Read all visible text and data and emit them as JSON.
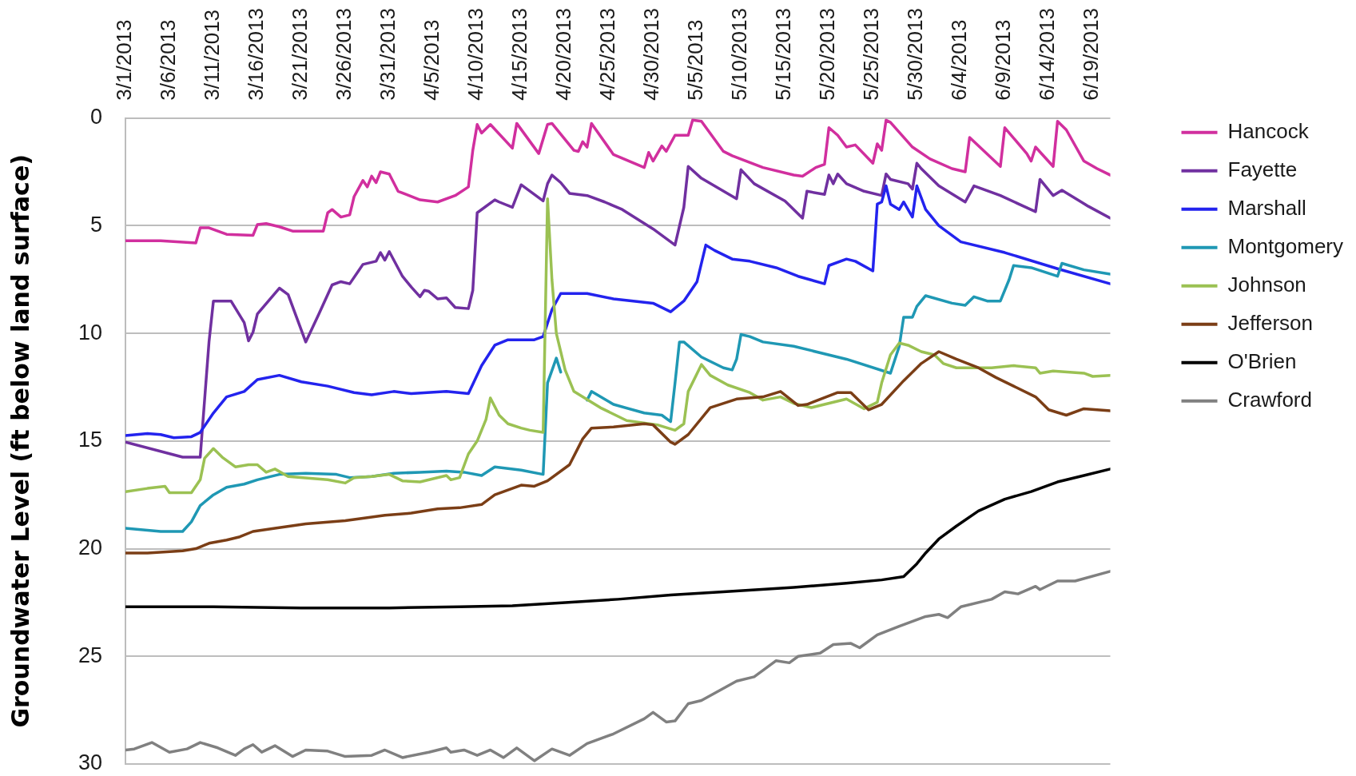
{
  "chart_data": {
    "type": "line",
    "ylabel": "Groundwater Level (ft below land surface)",
    "xlim": [
      "2013-03-01",
      "2013-06-21"
    ],
    "xticks": [
      {
        "value": "2013-03-01",
        "label": "3/1/2013"
      },
      {
        "value": "2013-03-06",
        "label": "3/6/2013"
      },
      {
        "value": "2013-03-11",
        "label": "3/11/2013"
      },
      {
        "value": "2013-03-16",
        "label": "3/16/2013"
      },
      {
        "value": "2013-03-21",
        "label": "3/21/2013"
      },
      {
        "value": "2013-03-26",
        "label": "3/26/2013"
      },
      {
        "value": "2013-03-31",
        "label": "3/31/2013"
      },
      {
        "value": "2013-04-05",
        "label": "4/5/2013"
      },
      {
        "value": "2013-04-10",
        "label": "4/10/2013"
      },
      {
        "value": "2013-04-15",
        "label": "4/15/2013"
      },
      {
        "value": "2013-04-20",
        "label": "4/20/2013"
      },
      {
        "value": "2013-04-25",
        "label": "4/25/2013"
      },
      {
        "value": "2013-04-30",
        "label": "4/30/2013"
      },
      {
        "value": "2013-05-05",
        "label": "5/5/2013"
      },
      {
        "value": "2013-05-10",
        "label": "5/10/2013"
      },
      {
        "value": "2013-05-15",
        "label": "5/15/2013"
      },
      {
        "value": "2013-05-20",
        "label": "5/20/2013"
      },
      {
        "value": "2013-05-25",
        "label": "5/25/2013"
      },
      {
        "value": "2013-05-30",
        "label": "5/30/2013"
      },
      {
        "value": "2013-06-04",
        "label": "6/4/2013"
      },
      {
        "value": "2013-06-09",
        "label": "6/9/2013"
      },
      {
        "value": "2013-06-14",
        "label": "6/14/2013"
      },
      {
        "value": "2013-06-19",
        "label": "6/19/2013"
      }
    ],
    "ylim": [
      30,
      0
    ],
    "yticks": [
      0,
      5,
      10,
      15,
      20,
      25,
      30
    ],
    "grid": "y",
    "legend": "top right",
    "marker": "none",
    "series": [
      {
        "name": "Hancock",
        "color": "#d12f9e",
        "x": [
          "2013-03-01",
          "2013-03-05",
          "2013-03-09",
          "2013-03-09T12:00",
          "2013-03-10T12:00",
          "2013-03-12T12:00",
          "2013-03-15T12:00",
          "2013-03-16",
          "2013-03-17",
          "2013-03-18T12:00",
          "2013-03-20",
          "2013-03-23T12:00",
          "2013-03-24",
          "2013-03-24T12:00",
          "2013-03-25T12:00",
          "2013-03-26T12:00",
          "2013-03-27",
          "2013-03-28",
          "2013-03-28T12:00",
          "2013-03-29",
          "2013-03-29T12:00",
          "2013-03-30",
          "2013-03-31",
          "2013-04-01",
          "2013-04-03T12:00",
          "2013-04-05T12:00",
          "2013-04-07T12:00",
          "2013-04-09",
          "2013-04-09T12:00",
          "2013-04-10",
          "2013-04-10T12:00",
          "2013-04-11T12:00",
          "2013-04-14",
          "2013-04-14T12:00",
          "2013-04-17",
          "2013-04-18",
          "2013-04-18T12:00",
          "2013-04-21",
          "2013-04-21T12:00",
          "2013-04-22",
          "2013-04-22T12:00",
          "2013-04-23",
          "2013-04-25T12:00",
          "2013-04-29",
          "2013-04-29T12:00",
          "2013-04-30",
          "2013-05-01",
          "2013-05-01T12:00",
          "2013-05-02T12:00",
          "2013-05-04",
          "2013-05-04T12:00",
          "2013-05-05T12:00",
          "2013-05-08",
          "2013-05-09",
          "2013-05-12T12:00",
          "2013-05-16",
          "2013-05-17",
          "2013-05-18T12:00",
          "2013-05-19T12:00",
          "2013-05-20",
          "2013-05-21",
          "2013-05-22",
          "2013-05-23",
          "2013-05-25",
          "2013-05-25T12:00",
          "2013-05-26",
          "2013-05-26T12:00",
          "2013-05-27",
          "2013-05-29T12:00",
          "2013-05-31T12:00",
          "2013-06-03",
          "2013-06-04T12:00",
          "2013-06-05",
          "2013-06-08T12:00",
          "2013-06-09",
          "2013-06-11T12:00",
          "2013-06-12",
          "2013-06-12T12:00",
          "2013-06-14T12:00",
          "2013-06-15",
          "2013-06-16",
          "2013-06-18",
          "2013-06-19T12:00",
          "2013-06-21"
        ],
        "values": [
          5.7,
          5.7,
          5.8,
          5.1,
          5.1,
          5.4,
          5.45,
          4.95,
          4.9,
          5.05,
          5.25,
          5.25,
          4.4,
          4.25,
          4.6,
          4.5,
          3.65,
          2.9,
          3.2,
          2.7,
          3.0,
          2.5,
          2.6,
          3.4,
          3.8,
          3.9,
          3.6,
          3.2,
          1.5,
          0.3,
          0.7,
          0.3,
          1.4,
          0.25,
          1.65,
          0.3,
          0.25,
          1.5,
          1.55,
          1.1,
          1.35,
          0.25,
          1.7,
          2.3,
          1.6,
          2.0,
          1.3,
          1.55,
          0.8,
          0.8,
          0.1,
          0.15,
          1.55,
          1.75,
          2.3,
          2.65,
          2.7,
          2.3,
          2.15,
          0.45,
          0.8,
          1.35,
          1.25,
          2.1,
          1.2,
          1.5,
          0.1,
          0.2,
          1.35,
          1.9,
          2.35,
          2.5,
          0.9,
          2.25,
          0.45,
          1.65,
          2.0,
          1.35,
          2.25,
          0.15,
          0.55,
          2.0,
          2.35,
          2.65
        ]
      },
      {
        "name": "Fayette",
        "color": "#7030a0",
        "x": [
          "2013-03-01",
          "2013-03-07T12:00",
          "2013-03-09T12:00",
          "2013-03-10T12:00",
          "2013-03-11",
          "2013-03-13",
          "2013-03-14T12:00",
          "2013-03-15",
          "2013-03-15T12:00",
          "2013-03-16",
          "2013-03-18T12:00",
          "2013-03-19T12:00",
          "2013-03-21T12:00",
          "2013-03-23",
          "2013-03-24T12:00",
          "2013-03-25T12:00",
          "2013-03-26T12:00",
          "2013-03-27T12:00",
          "2013-03-28",
          "2013-03-29T12:00",
          "2013-03-30",
          "2013-03-30T12:00",
          "2013-03-31",
          "2013-04-01T12:00",
          "2013-04-02T12:00",
          "2013-04-03T12:00",
          "2013-04-04",
          "2013-04-04T12:00",
          "2013-04-05T12:00",
          "2013-04-06T12:00",
          "2013-04-07T12:00",
          "2013-04-09",
          "2013-04-09T12:00",
          "2013-04-10",
          "2013-04-12",
          "2013-04-12T12:00",
          "2013-04-14",
          "2013-04-15",
          "2013-04-17T12:00",
          "2013-04-18",
          "2013-04-18T12:00",
          "2013-04-19T12:00",
          "2013-04-20T12:00",
          "2013-04-22T12:00",
          "2013-04-24T12:00",
          "2013-04-26T12:00",
          "2013-04-30",
          "2013-05-02T12:00",
          "2013-05-03T12:00",
          "2013-05-04",
          "2013-05-05T12:00",
          "2013-05-09T12:00",
          "2013-05-10",
          "2013-05-11T12:00",
          "2013-05-15",
          "2013-05-17",
          "2013-05-17T12:00",
          "2013-05-19T12:00",
          "2013-05-20",
          "2013-05-20T12:00",
          "2013-05-21",
          "2013-05-22",
          "2013-05-24",
          "2013-05-26",
          "2013-05-26T12:00",
          "2013-05-27",
          "2013-05-29",
          "2013-05-29T12:00",
          "2013-05-30",
          "2013-05-30T12:00",
          "2013-06-01T12:00",
          "2013-06-04T12:00",
          "2013-06-05T12:00",
          "2013-06-08T12:00",
          "2013-06-12T12:00",
          "2013-06-13",
          "2013-06-14T12:00",
          "2013-06-15T12:00",
          "2013-06-18T12:00",
          "2013-06-21"
        ],
        "values": [
          15.05,
          15.75,
          15.75,
          10.4,
          8.5,
          8.5,
          9.5,
          10.35,
          9.95,
          9.1,
          7.9,
          8.2,
          10.4,
          9.1,
          7.75,
          7.6,
          7.7,
          7.1,
          6.8,
          6.65,
          6.25,
          6.6,
          6.2,
          7.35,
          7.85,
          8.3,
          8.0,
          8.05,
          8.4,
          8.35,
          8.8,
          8.85,
          8.0,
          4.4,
          3.8,
          3.9,
          4.15,
          3.1,
          3.85,
          3.05,
          2.65,
          3.0,
          3.5,
          3.6,
          3.9,
          4.25,
          5.15,
          5.9,
          4.15,
          2.25,
          2.8,
          3.75,
          2.4,
          3.05,
          3.85,
          4.65,
          3.4,
          3.55,
          2.65,
          3.05,
          2.6,
          3.05,
          3.4,
          3.6,
          2.6,
          2.85,
          3.05,
          3.3,
          2.1,
          2.35,
          3.15,
          3.9,
          3.15,
          3.6,
          4.35,
          2.85,
          3.6,
          3.35,
          4.1,
          4.65
        ]
      },
      {
        "name": "Marshall",
        "color": "#2323ee",
        "x": [
          "2013-03-01",
          "2013-03-03T12:00",
          "2013-03-05",
          "2013-03-06T12:00",
          "2013-03-08T12:00",
          "2013-03-09T12:00",
          "2013-03-11",
          "2013-03-12T12:00",
          "2013-03-14T12:00",
          "2013-03-16",
          "2013-03-18T12:00",
          "2013-03-21",
          "2013-03-24",
          "2013-03-27",
          "2013-03-29",
          "2013-03-31T12:00",
          "2013-04-02T12:00",
          "2013-04-06T12:00",
          "2013-04-09",
          "2013-04-10T12:00",
          "2013-04-12",
          "2013-04-13T12:00",
          "2013-04-16T12:00",
          "2013-04-17T12:00",
          "2013-04-18T12:00",
          "2013-04-19T12:00",
          "2013-04-22T12:00",
          "2013-04-25T12:00",
          "2013-04-30",
          "2013-05-02",
          "2013-05-03T12:00",
          "2013-05-05",
          "2013-05-06",
          "2013-05-07",
          "2013-05-09",
          "2013-05-11",
          "2013-05-14",
          "2013-05-16T12:00",
          "2013-05-19T12:00",
          "2013-05-20",
          "2013-05-22",
          "2013-05-23",
          "2013-05-25",
          "2013-05-25T12:00",
          "2013-05-26",
          "2013-05-26T12:00",
          "2013-05-27",
          "2013-05-28",
          "2013-05-28T12:00",
          "2013-05-29T12:00",
          "2013-05-30",
          "2013-05-31",
          "2013-06-01T12:00",
          "2013-06-04",
          "2013-06-09",
          "2013-06-15",
          "2013-06-21"
        ],
        "values": [
          14.75,
          14.65,
          14.7,
          14.85,
          14.8,
          14.6,
          13.7,
          12.95,
          12.7,
          12.15,
          11.95,
          12.25,
          12.45,
          12.75,
          12.85,
          12.7,
          12.8,
          12.7,
          12.8,
          11.5,
          10.55,
          10.3,
          10.3,
          10.15,
          8.9,
          8.15,
          8.15,
          8.4,
          8.6,
          9.0,
          8.5,
          7.6,
          5.9,
          6.15,
          6.55,
          6.65,
          6.95,
          7.35,
          7.7,
          6.85,
          6.55,
          6.65,
          7.1,
          4.0,
          3.9,
          3.15,
          4.0,
          4.25,
          3.9,
          4.6,
          3.15,
          4.25,
          5.0,
          5.75,
          6.25,
          7.0,
          7.7
        ]
      },
      {
        "name": "Montgomery",
        "color": "#1f98b4",
        "x": [
          "2013-03-01",
          "2013-03-05",
          "2013-03-07T12:00",
          "2013-03-08T12:00",
          "2013-03-09T12:00",
          "2013-03-11",
          "2013-03-12T12:00",
          "2013-03-14T12:00",
          "2013-03-16",
          "2013-03-18T12:00",
          "2013-03-21T12:00",
          "2013-03-25",
          "2013-03-26T12:00",
          "2013-03-29",
          "2013-03-31T12:00",
          "2013-04-03T12:00",
          "2013-04-06T12:00",
          "2013-04-08T12:00",
          "2013-04-10T12:00",
          "2013-04-12",
          "2013-04-15",
          "2013-04-17T12:00",
          "2013-04-18",
          "2013-04-19",
          "2013-04-19T12:00",
          "2013-04-20T12:00",
          "2013-04-22T12:00",
          "2013-04-23",
          "2013-04-25T12:00",
          "2013-04-29",
          "2013-05-01",
          "2013-05-02",
          "2013-05-02T12:00",
          "2013-05-03",
          "2013-05-03T12:00",
          "2013-05-05T12:00",
          "2013-05-08",
          "2013-05-09",
          "2013-05-09T12:00",
          "2013-05-10",
          "2013-05-11",
          "2013-05-12T12:00",
          "2013-05-16",
          "2013-05-22",
          "2013-05-27",
          "2013-05-28",
          "2013-05-28T12:00",
          "2013-05-29T12:00",
          "2013-05-30",
          "2013-05-31",
          "2013-06-03",
          "2013-06-04T12:00",
          "2013-06-05T12:00",
          "2013-06-07",
          "2013-06-08T12:00",
          "2013-06-09T12:00",
          "2013-06-10",
          "2013-06-12",
          "2013-06-15",
          "2013-06-15T12:00",
          "2013-06-18",
          "2013-06-21"
        ],
        "values": [
          19.05,
          19.2,
          19.2,
          18.75,
          18.0,
          17.5,
          17.15,
          17.0,
          16.8,
          16.55,
          16.5,
          16.55,
          16.7,
          16.65,
          16.5,
          16.45,
          16.4,
          16.45,
          16.6,
          16.2,
          16.35,
          16.55,
          12.3,
          11.15,
          11.8,
          null,
          13.1,
          12.7,
          13.3,
          13.7,
          13.8,
          14.1,
          12.3,
          10.4,
          10.4,
          11.1,
          11.6,
          11.7,
          11.2,
          10.05,
          10.15,
          10.4,
          10.6,
          11.2,
          11.85,
          10.6,
          9.25,
          9.25,
          8.75,
          8.25,
          8.6,
          8.7,
          8.3,
          8.5,
          8.5,
          7.5,
          6.85,
          6.95,
          7.35,
          6.75,
          7.05,
          7.25
        ]
      },
      {
        "name": "Johnson",
        "color": "#9bc153",
        "x": [
          "2013-03-01",
          "2013-03-03T12:00",
          "2013-03-05T12:00",
          "2013-03-06",
          "2013-03-08T12:00",
          "2013-03-09T12:00",
          "2013-03-10",
          "2013-03-11",
          "2013-03-12",
          "2013-03-13T12:00",
          "2013-03-15",
          "2013-03-16",
          "2013-03-17",
          "2013-03-18",
          "2013-03-19T12:00",
          "2013-03-24",
          "2013-03-26",
          "2013-03-27",
          "2013-03-29",
          "2013-03-31",
          "2013-04-01T12:00",
          "2013-04-03T12:00",
          "2013-04-05",
          "2013-04-06T12:00",
          "2013-04-07",
          "2013-04-08",
          "2013-04-09",
          "2013-04-10",
          "2013-04-11",
          "2013-04-11T12:00",
          "2013-04-12T12:00",
          "2013-04-13T12:00",
          "2013-04-15",
          "2013-04-16",
          "2013-04-17T12:00",
          "2013-04-18",
          "2013-04-18T12:00",
          "2013-04-19",
          "2013-04-20",
          "2013-04-21",
          "2013-04-24",
          "2013-04-27",
          "2013-04-30T12:00",
          "2013-05-02T12:00",
          "2013-05-03T12:00",
          "2013-05-04",
          "2013-05-05T12:00",
          "2013-05-06T12:00",
          "2013-05-08T12:00",
          "2013-05-11",
          "2013-05-12T12:00",
          "2013-05-14T12:00",
          "2013-05-16",
          "2013-05-18",
          "2013-05-22",
          "2013-05-24",
          "2013-05-25T12:00",
          "2013-05-26",
          "2013-05-27",
          "2013-05-28",
          "2013-05-29",
          "2013-05-30T12:00",
          "2013-06-01",
          "2013-06-02",
          "2013-06-03T12:00",
          "2013-06-07T12:00",
          "2013-06-10",
          "2013-06-12T12:00",
          "2013-06-13",
          "2013-06-14T12:00",
          "2013-06-18",
          "2013-06-19",
          "2013-06-21"
        ],
        "values": [
          17.35,
          17.2,
          17.1,
          17.4,
          17.4,
          16.8,
          15.8,
          15.35,
          15.75,
          16.2,
          16.1,
          16.1,
          16.45,
          16.3,
          16.65,
          16.8,
          16.95,
          16.7,
          16.65,
          16.55,
          16.85,
          16.9,
          16.75,
          16.6,
          16.8,
          16.7,
          15.6,
          15.0,
          14.0,
          13.0,
          13.8,
          14.2,
          14.4,
          14.5,
          14.6,
          3.75,
          7.5,
          10.0,
          11.7,
          12.7,
          13.45,
          14.05,
          14.25,
          14.5,
          14.2,
          12.7,
          11.45,
          11.95,
          12.4,
          12.75,
          13.1,
          12.95,
          13.25,
          13.45,
          13.05,
          13.5,
          13.2,
          12.3,
          11.0,
          10.45,
          10.55,
          10.85,
          11.0,
          11.4,
          11.6,
          11.6,
          11.5,
          11.6,
          11.85,
          11.75,
          11.85,
          12.0,
          11.95
        ]
      },
      {
        "name": "Jefferson",
        "color": "#7b3e16",
        "x": [
          "2013-03-01",
          "2013-03-03T12:00",
          "2013-03-07T12:00",
          "2013-03-09",
          "2013-03-10T12:00",
          "2013-03-12T12:00",
          "2013-03-14",
          "2013-03-15T12:00",
          "2013-03-18",
          "2013-03-21T12:00",
          "2013-03-26",
          "2013-03-30T12:00",
          "2013-04-02T12:00",
          "2013-04-05T12:00",
          "2013-04-08",
          "2013-04-10T12:00",
          "2013-04-12",
          "2013-04-15",
          "2013-04-16T12:00",
          "2013-04-18",
          "2013-04-20T12:00",
          "2013-04-22",
          "2013-04-23",
          "2013-04-25T12:00",
          "2013-04-29",
          "2013-04-30",
          "2013-05-02",
          "2013-05-02T12:00",
          "2013-05-04",
          "2013-05-06T12:00",
          "2013-05-09T12:00",
          "2013-05-12T12:00",
          "2013-05-14T12:00",
          "2013-05-16T12:00",
          "2013-05-17T12:00",
          "2013-05-21",
          "2013-05-22T12:00",
          "2013-05-24T12:00",
          "2013-05-26",
          "2013-05-28T12:00",
          "2013-05-30T12:00",
          "2013-06-01T12:00",
          "2013-06-03T12:00",
          "2013-06-06",
          "2013-06-08",
          "2013-06-10",
          "2013-06-12T12:00",
          "2013-06-14",
          "2013-06-16",
          "2013-06-18",
          "2013-06-21"
        ],
        "values": [
          20.2,
          20.2,
          20.1,
          20.0,
          19.75,
          19.6,
          19.45,
          19.2,
          19.05,
          18.85,
          18.7,
          18.45,
          18.35,
          18.15,
          18.1,
          17.95,
          17.5,
          17.05,
          17.1,
          16.85,
          16.1,
          14.9,
          14.4,
          14.35,
          14.2,
          14.25,
          15.05,
          15.15,
          14.7,
          13.45,
          13.05,
          12.95,
          12.7,
          13.35,
          13.3,
          12.75,
          12.75,
          13.55,
          13.3,
          12.2,
          11.4,
          10.85,
          11.2,
          11.6,
          12.05,
          12.45,
          12.95,
          13.55,
          13.8,
          13.5,
          13.6
        ]
      },
      {
        "name": "O'Brien",
        "color": "#000000",
        "x": [
          "2013-03-01",
          "2013-03-11",
          "2013-03-21",
          "2013-03-31",
          "2013-04-08",
          "2013-04-14",
          "2013-04-20",
          "2013-04-26",
          "2013-05-02",
          "2013-05-08",
          "2013-05-16",
          "2013-05-22",
          "2013-05-26",
          "2013-05-28T12:00",
          "2013-05-30",
          "2013-05-31",
          "2013-06-01T12:00",
          "2013-06-03T12:00",
          "2013-06-06",
          "2013-06-09",
          "2013-06-12",
          "2013-06-15",
          "2013-06-18",
          "2013-06-21"
        ],
        "values": [
          22.7,
          22.7,
          22.75,
          22.75,
          22.7,
          22.65,
          22.5,
          22.35,
          22.15,
          22.0,
          21.8,
          21.6,
          21.45,
          21.3,
          20.7,
          20.2,
          19.55,
          18.95,
          18.25,
          17.7,
          17.35,
          16.9,
          16.6,
          16.3
        ]
      },
      {
        "name": "Crawford",
        "color": "#808080",
        "x": [
          "2013-03-01",
          "2013-03-02",
          "2013-03-04",
          "2013-03-06",
          "2013-03-08",
          "2013-03-09T12:00",
          "2013-03-11T12:00",
          "2013-03-13T12:00",
          "2013-03-14T12:00",
          "2013-03-15T12:00",
          "2013-03-16T12:00",
          "2013-03-18",
          "2013-03-20",
          "2013-03-21T12:00",
          "2013-03-24",
          "2013-03-26",
          "2013-03-29",
          "2013-03-30T12:00",
          "2013-04-01T12:00",
          "2013-04-04T12:00",
          "2013-04-06T12:00",
          "2013-04-07",
          "2013-04-08T12:00",
          "2013-04-10",
          "2013-04-11T12:00",
          "2013-04-13",
          "2013-04-14T12:00",
          "2013-04-16T12:00",
          "2013-04-18T12:00",
          "2013-04-20T12:00",
          "2013-04-22T12:00",
          "2013-04-25T12:00",
          "2013-04-29",
          "2013-04-30",
          "2013-05-01T12:00",
          "2013-05-02T12:00",
          "2013-05-04",
          "2013-05-05T12:00",
          "2013-05-09T12:00",
          "2013-05-11T12:00",
          "2013-05-14",
          "2013-05-15T12:00",
          "2013-05-16T12:00",
          "2013-05-19",
          "2013-05-20T12:00",
          "2013-05-22T12:00",
          "2013-05-23T12:00",
          "2013-05-25T12:00",
          "2013-05-28",
          "2013-05-31",
          "2013-06-01T12:00",
          "2013-06-02T12:00",
          "2013-06-04",
          "2013-06-07T12:00",
          "2013-06-09",
          "2013-06-10T12:00",
          "2013-06-12T12:00",
          "2013-06-13",
          "2013-06-15",
          "2013-06-17",
          "2013-06-21"
        ],
        "values": [
          29.35,
          29.3,
          29.0,
          29.45,
          29.3,
          29.0,
          29.25,
          29.6,
          29.3,
          29.1,
          29.45,
          29.15,
          29.65,
          29.35,
          29.4,
          29.65,
          29.6,
          29.35,
          29.7,
          29.45,
          29.25,
          29.45,
          29.35,
          29.6,
          29.35,
          29.7,
          29.25,
          29.85,
          29.3,
          29.6,
          29.05,
          28.6,
          27.9,
          27.6,
          28.05,
          28.0,
          27.2,
          27.05,
          26.15,
          25.95,
          25.2,
          25.3,
          25.0,
          24.85,
          24.45,
          24.4,
          24.6,
          24.0,
          23.6,
          23.15,
          23.05,
          23.2,
          22.7,
          22.35,
          22.0,
          22.1,
          21.75,
          21.9,
          21.5,
          21.5,
          21.05
        ]
      }
    ]
  }
}
